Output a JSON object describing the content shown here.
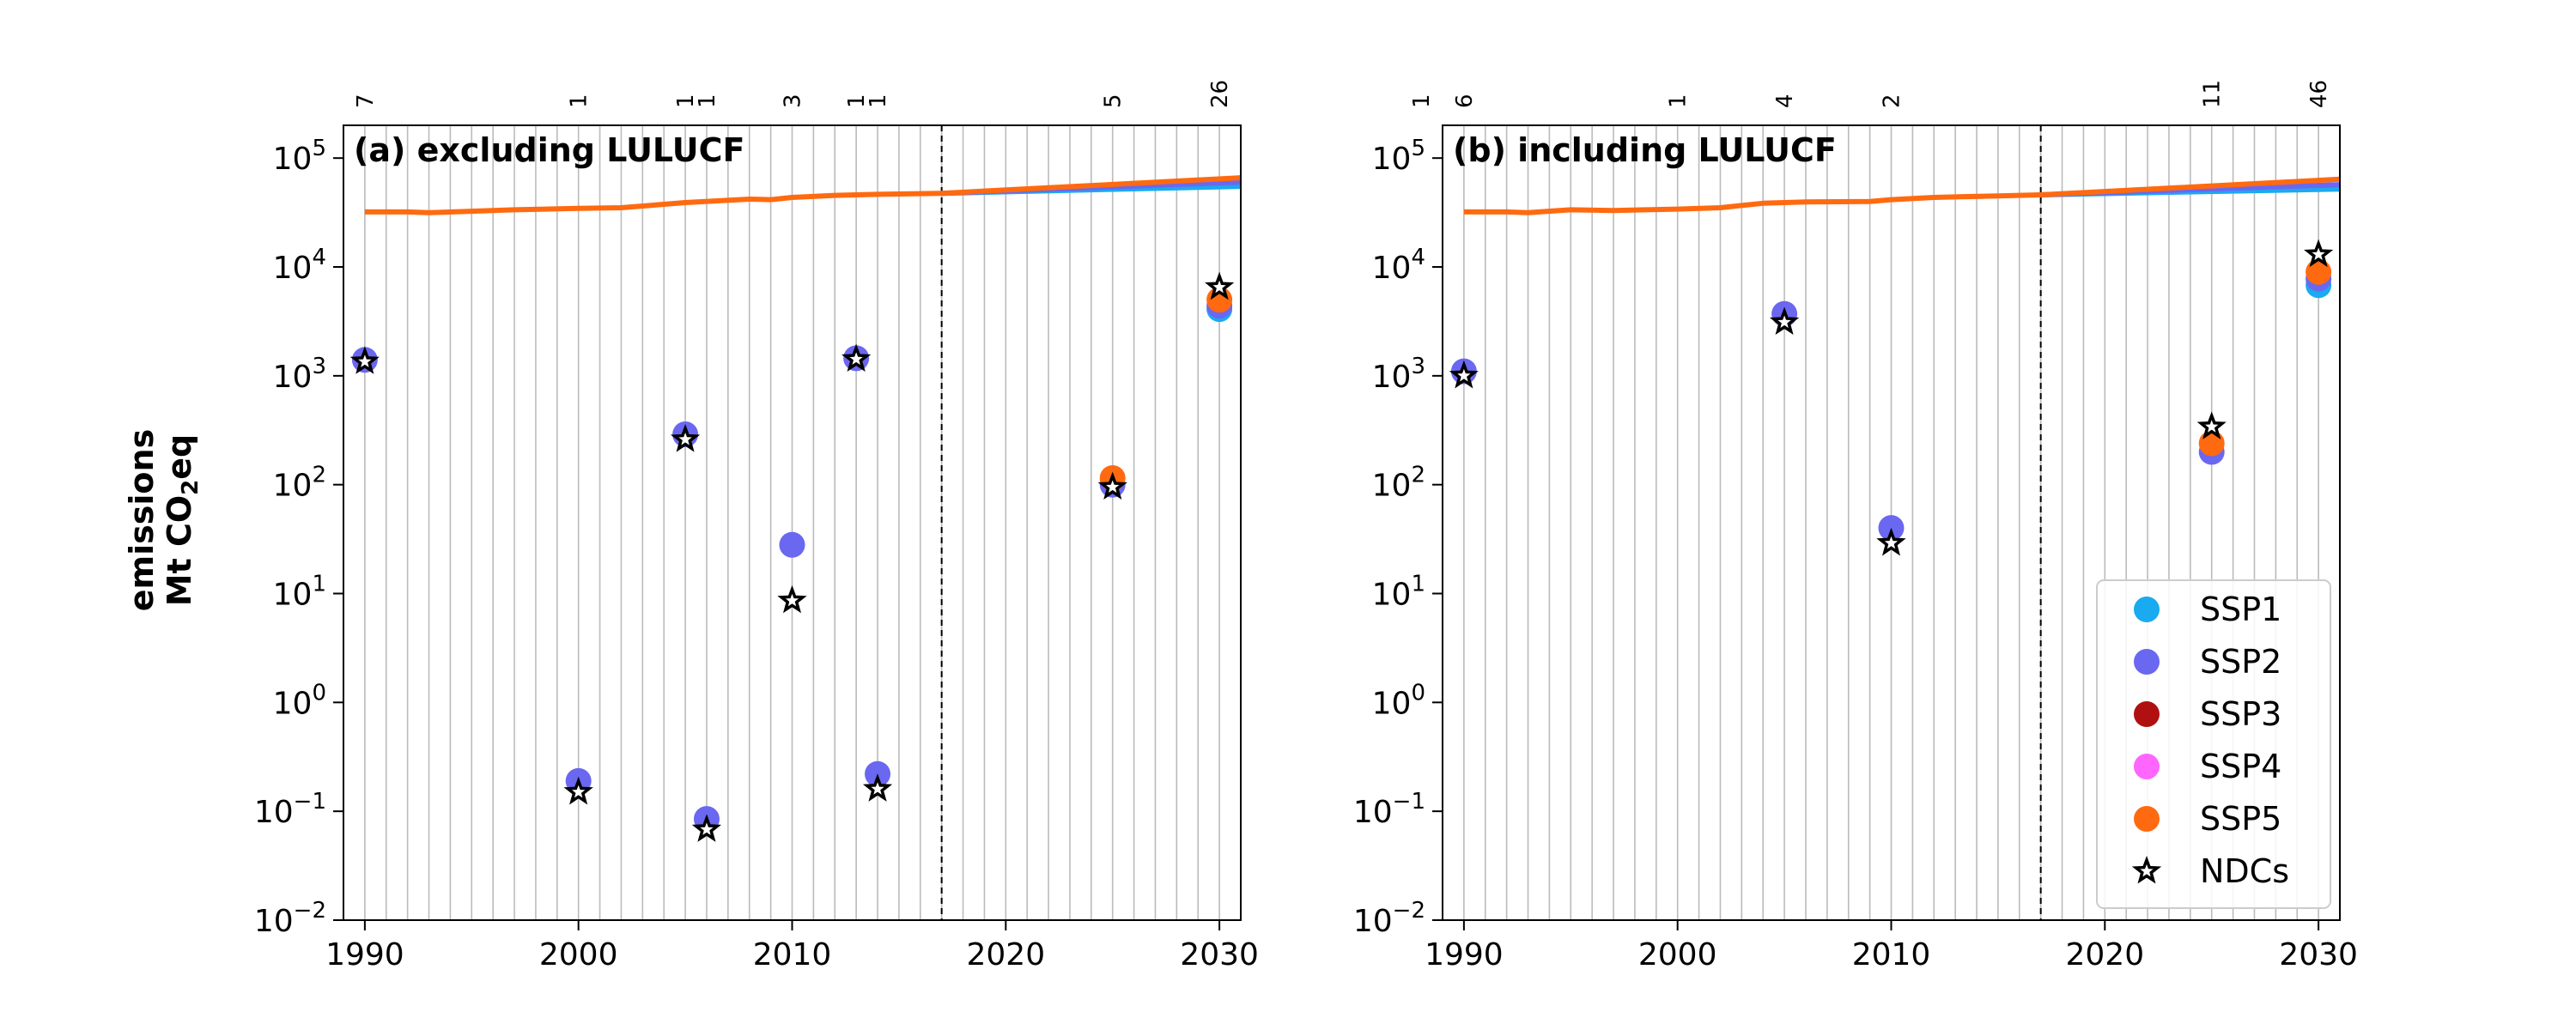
{
  "figure": {
    "ylabel_line1": "emissions",
    "ylabel_line2_pre": "Mt CO",
    "ylabel_line2_sub": "2",
    "ylabel_line2_post": "eq"
  },
  "colors": {
    "SSP1": "#1aaaf0",
    "SSP2": "#6a67f0",
    "SSP3": "#b01010",
    "SSP4": "#ff66ff",
    "SSP5": "#ff6a10",
    "NDCs": "#000000",
    "grid": "#bbbbbb"
  },
  "legend": {
    "placement": "lower right of panel (b)",
    "entries": [
      {
        "label": "SSP1",
        "marker": "circle",
        "color": "#1aaaf0"
      },
      {
        "label": "SSP2",
        "marker": "circle",
        "color": "#6a67f0"
      },
      {
        "label": "SSP3",
        "marker": "circle",
        "color": "#b01010"
      },
      {
        "label": "SSP4",
        "marker": "circle",
        "color": "#ff66ff"
      },
      {
        "label": "SSP5",
        "marker": "circle",
        "color": "#ff6a10"
      },
      {
        "label": "NDCs",
        "marker": "star",
        "color": "#000000"
      }
    ]
  },
  "chart_data": [
    {
      "type": "scatter",
      "panel": "a",
      "title": "(a) excluding LULUCF",
      "xlim": [
        1989,
        2031
      ],
      "ylim": [
        0.01,
        200000
      ],
      "y_scale": "log",
      "grid": "vertical, yearly",
      "x_ticks": [
        "1990",
        "2000",
        "2010",
        "2020",
        "2030"
      ],
      "y_ticks": [
        {
          "base": "10",
          "exp": "5"
        },
        {
          "base": "10",
          "exp": "4"
        },
        {
          "base": "10",
          "exp": "3"
        },
        {
          "base": "10",
          "exp": "2"
        },
        {
          "base": "10",
          "exp": "1"
        },
        {
          "base": "10",
          "exp": "0"
        },
        {
          "base": "10",
          "exp": "−1"
        },
        {
          "base": "10",
          "exp": "−2"
        }
      ],
      "vline_year": 2017,
      "global_emissions": {
        "history": [
          [
            1990,
            32000
          ],
          [
            1992,
            32000
          ],
          [
            1993,
            31500
          ],
          [
            1995,
            32500
          ],
          [
            1997,
            33500
          ],
          [
            2000,
            34500
          ],
          [
            2002,
            35000
          ],
          [
            2005,
            39000
          ],
          [
            2008,
            42000
          ],
          [
            2009,
            41500
          ],
          [
            2010,
            43500
          ],
          [
            2012,
            45500
          ],
          [
            2014,
            46500
          ],
          [
            2017,
            47500
          ]
        ],
        "scenarios": [
          {
            "name": "SSP1",
            "values": [
              [
                2017,
                47500
              ],
              [
                2031,
                55000
              ]
            ]
          },
          {
            "name": "SSP2",
            "values": [
              [
                2017,
                47500
              ],
              [
                2031,
                60000
              ]
            ]
          },
          {
            "name": "SSP5",
            "values": [
              [
                2017,
                47500
              ],
              [
                2031,
                66000
              ]
            ]
          }
        ]
      },
      "ndc_counts": [
        {
          "year": 1990,
          "count": "7"
        },
        {
          "year": 2000,
          "count": "1"
        },
        {
          "year": 2005,
          "count": "1"
        },
        {
          "year": 2006,
          "count": "1"
        },
        {
          "year": 2010,
          "count": "3"
        },
        {
          "year": 2013,
          "count": "1"
        },
        {
          "year": 2014,
          "count": "1"
        },
        {
          "year": 2025,
          "count": "5"
        },
        {
          "year": 2030,
          "count": "26"
        }
      ],
      "ssp_points": [
        {
          "year": 1990,
          "series": "SSP2",
          "value": 1400
        },
        {
          "year": 2000,
          "series": "SSP2",
          "value": 0.19
        },
        {
          "year": 2005,
          "series": "SSP2",
          "value": 290
        },
        {
          "year": 2006,
          "series": "SSP2",
          "value": 0.085
        },
        {
          "year": 2010,
          "series": "SSP2",
          "value": 28
        },
        {
          "year": 2013,
          "series": "SSP2",
          "value": 1450
        },
        {
          "year": 2014,
          "series": "SSP2",
          "value": 0.22
        },
        {
          "year": 2025,
          "series": "SSP2",
          "value": 100
        },
        {
          "year": 2025,
          "series": "SSP5",
          "value": 115
        },
        {
          "year": 2030,
          "series": "SSP1",
          "value": 4100
        },
        {
          "year": 2030,
          "series": "SSP2",
          "value": 4400
        },
        {
          "year": 2030,
          "series": "SSP5",
          "value": 5000
        }
      ],
      "ndc_points": [
        {
          "year": 1990,
          "value": 1350
        },
        {
          "year": 2000,
          "value": 0.15
        },
        {
          "year": 2005,
          "value": 260
        },
        {
          "year": 2006,
          "value": 0.068
        },
        {
          "year": 2010,
          "value": 8.6
        },
        {
          "year": 2013,
          "value": 1420
        },
        {
          "year": 2014,
          "value": 0.16
        },
        {
          "year": 2025,
          "value": 95
        },
        {
          "year": 2030,
          "value": 6500
        }
      ]
    },
    {
      "type": "scatter",
      "panel": "b",
      "title": "(b) including LULUCF",
      "xlim": [
        1989,
        2031
      ],
      "ylim": [
        0.01,
        200000
      ],
      "y_scale": "log",
      "grid": "vertical, yearly",
      "x_ticks": [
        "1990",
        "2000",
        "2010",
        "2020",
        "2030"
      ],
      "y_ticks": [
        {
          "base": "10",
          "exp": "5"
        },
        {
          "base": "10",
          "exp": "4"
        },
        {
          "base": "10",
          "exp": "3"
        },
        {
          "base": "10",
          "exp": "2"
        },
        {
          "base": "10",
          "exp": "1"
        },
        {
          "base": "10",
          "exp": "0"
        },
        {
          "base": "10",
          "exp": "−1"
        },
        {
          "base": "10",
          "exp": "−2"
        }
      ],
      "vline_year": 2017,
      "global_emissions": {
        "history": [
          [
            1990,
            32000
          ],
          [
            1992,
            32000
          ],
          [
            1993,
            31500
          ],
          [
            1995,
            33500
          ],
          [
            1997,
            33000
          ],
          [
            2000,
            34000
          ],
          [
            2002,
            35000
          ],
          [
            2004,
            38500
          ],
          [
            2006,
            39500
          ],
          [
            2009,
            40000
          ],
          [
            2010,
            41500
          ],
          [
            2012,
            43500
          ],
          [
            2015,
            45000
          ],
          [
            2017,
            46000
          ]
        ],
        "scenarios": [
          {
            "name": "SSP1",
            "values": [
              [
                2017,
                46000
              ],
              [
                2031,
                52000
              ]
            ]
          },
          {
            "name": "SSP2",
            "values": [
              [
                2017,
                46000
              ],
              [
                2031,
                57000
              ]
            ]
          },
          {
            "name": "SSP5",
            "values": [
              [
                2017,
                46000
              ],
              [
                2031,
                64000
              ]
            ]
          }
        ]
      },
      "ndc_counts": [
        {
          "year": 1988,
          "count": "1"
        },
        {
          "year": 1990,
          "count": "6"
        },
        {
          "year": 2000,
          "count": "1"
        },
        {
          "year": 2005,
          "count": "4"
        },
        {
          "year": 2010,
          "count": "2"
        },
        {
          "year": 2025,
          "count": "11"
        },
        {
          "year": 2030,
          "count": "46"
        }
      ],
      "ssp_points": [
        {
          "year": 1990,
          "series": "SSP2",
          "value": 1100
        },
        {
          "year": 2005,
          "series": "SSP2",
          "value": 3700
        },
        {
          "year": 2010,
          "series": "SSP2",
          "value": 40
        },
        {
          "year": 2025,
          "series": "SSP2",
          "value": 200
        },
        {
          "year": 2025,
          "series": "SSP5",
          "value": 240
        },
        {
          "year": 2030,
          "series": "SSP1",
          "value": 6800
        },
        {
          "year": 2030,
          "series": "SSP2",
          "value": 7800
        },
        {
          "year": 2030,
          "series": "SSP5",
          "value": 9000
        }
      ],
      "ndc_points": [
        {
          "year": 1990,
          "value": 1000
        },
        {
          "year": 2005,
          "value": 3100
        },
        {
          "year": 2010,
          "value": 29
        },
        {
          "year": 2025,
          "value": 340
        },
        {
          "year": 2030,
          "value": 13000
        }
      ]
    }
  ]
}
